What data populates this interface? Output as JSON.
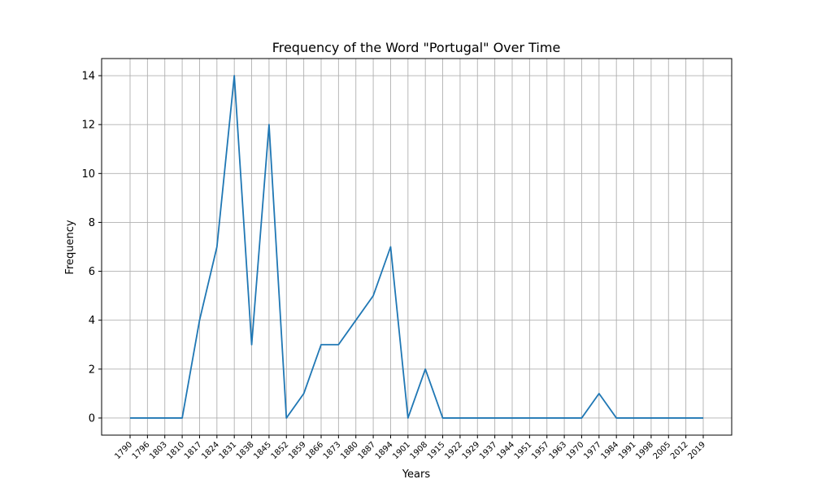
{
  "chart_data": {
    "type": "line",
    "title": "Frequency of the Word \"Portugal\" Over Time",
    "xlabel": "Years",
    "ylabel": "Frequency",
    "x": [
      "1790",
      "1796",
      "1803",
      "1810",
      "1817",
      "1824",
      "1831",
      "1838",
      "1845",
      "1852",
      "1859",
      "1866",
      "1873",
      "1880",
      "1887",
      "1894",
      "1901",
      "1908",
      "1915",
      "1922",
      "1929",
      "1937",
      "1944",
      "1951",
      "1957",
      "1963",
      "1970",
      "1977",
      "1984",
      "1991",
      "1998",
      "2005",
      "2012",
      "2019"
    ],
    "series": [
      {
        "values": [
          0,
          0,
          0,
          0,
          4,
          7,
          14,
          3,
          12,
          0,
          1,
          3,
          3,
          4,
          5,
          7,
          0,
          2,
          0,
          0,
          0,
          0,
          0,
          0,
          0,
          0,
          0,
          1,
          0,
          0,
          0,
          0,
          0,
          0
        ],
        "color": "#1f77b4"
      }
    ],
    "yticks": [
      0,
      2,
      4,
      6,
      8,
      10,
      12,
      14
    ],
    "ylim": [
      -0.7,
      14.7
    ],
    "grid": true
  }
}
